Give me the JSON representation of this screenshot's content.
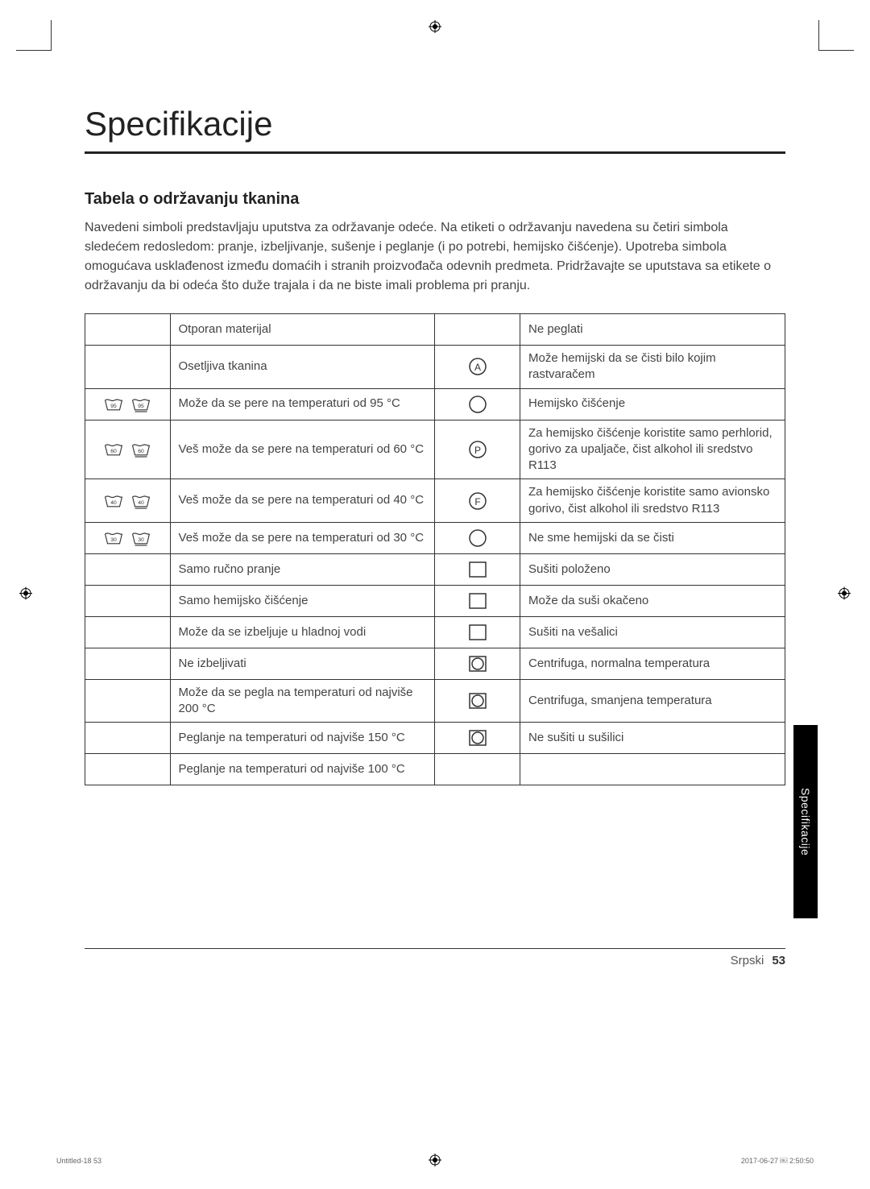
{
  "title": "Specifikacije",
  "subtitle": "Tabela o održavanju tkanina",
  "intro": "Navedeni simboli predstavljaju uputstva za održavanje odeće. Na etiketi o održavanju navedena su četiri simbola sledećem redosledom: pranje, izbeljivanje, sušenje i peglanje (i po potrebi, hemijsko čišćenje). Upotreba simbola omogućava usklađenost između domaćih i stranih proizvođača odevnih predmeta. Pridržavajte se uputstava sa etikete o održavanju da bi odeća što duže trajala i da ne biste imali problema pri pranju.",
  "rows": [
    {
      "l_icon": "wash-resistant",
      "l": "Otporan materijal",
      "r_icon": "do-not-iron",
      "r": "Ne peglati"
    },
    {
      "l_icon": "wash-delicate",
      "l": "Osetljiva tkanina",
      "r_icon": "dryclean-a",
      "r": "Može hemijski da se čisti bilo kojim rastvaračem"
    },
    {
      "l_icon": "wash-95",
      "l": "Može da se pere na temperaturi od 95 °C",
      "r_icon": "dryclean",
      "r": "Hemijsko čišćenje"
    },
    {
      "l_icon": "wash-60",
      "l": "Veš može da se pere na temperaturi od 60 °C",
      "r_icon": "dryclean-p",
      "r": "Za hemijsko čišćenje koristite samo perhlorid, gorivo za upaljače, čist alkohol ili sredstvo R113"
    },
    {
      "l_icon": "wash-40",
      "l": "Veš može da se pere na temperaturi od 40 °C",
      "r_icon": "dryclean-f",
      "r": "Za hemijsko čišćenje koristite samo avionsko gorivo, čist alkohol ili sredstvo R113"
    },
    {
      "l_icon": "wash-30",
      "l": "Veš može da se pere na temperaturi od 30 °C",
      "r_icon": "no-dryclean",
      "r": "Ne sme hemijski da se čisti"
    },
    {
      "l_icon": "hand-wash",
      "l": "Samo ručno pranje",
      "r_icon": "dry-flat",
      "r": "Sušiti položeno"
    },
    {
      "l_icon": "dryclean-only",
      "l": "Samo hemijsko čišćenje",
      "r_icon": "dry-hang",
      "r": "Može da suši okačeno"
    },
    {
      "l_icon": "bleach-cold",
      "l": "Može da se izbeljuje u hladnoj vodi",
      "r_icon": "dry-hanger",
      "r": "Sušiti na vešalici"
    },
    {
      "l_icon": "no-bleach",
      "l": "Ne izbeljivati",
      "r_icon": "tumble-normal",
      "r": "Centrifuga, normalna temperatura"
    },
    {
      "l_icon": "iron-200",
      "l": "Može da se pegla na temperaturi od najviše 200 °C",
      "r_icon": "tumble-low",
      "r": "Centrifuga, smanjena temperatura"
    },
    {
      "l_icon": "iron-150",
      "l": "Peglanje na temperaturi od najviše 150 °C",
      "r_icon": "no-tumble",
      "r": "Ne sušiti u sušilici"
    },
    {
      "l_icon": "iron-100",
      "l": "Peglanje na temperaturi od najviše 100 °C",
      "r_icon": "",
      "r": ""
    }
  ],
  "side_tab": "Specifikacije",
  "footer_lang": "Srpski",
  "footer_page": "53",
  "tiny_left": "Untitled-18   53",
  "tiny_right": "2017-06-27   ￼ 2:50:50",
  "colors": {
    "text": "#333333",
    "border": "#333333",
    "tab_bg": "#000000",
    "tab_fg": "#ffffff"
  }
}
